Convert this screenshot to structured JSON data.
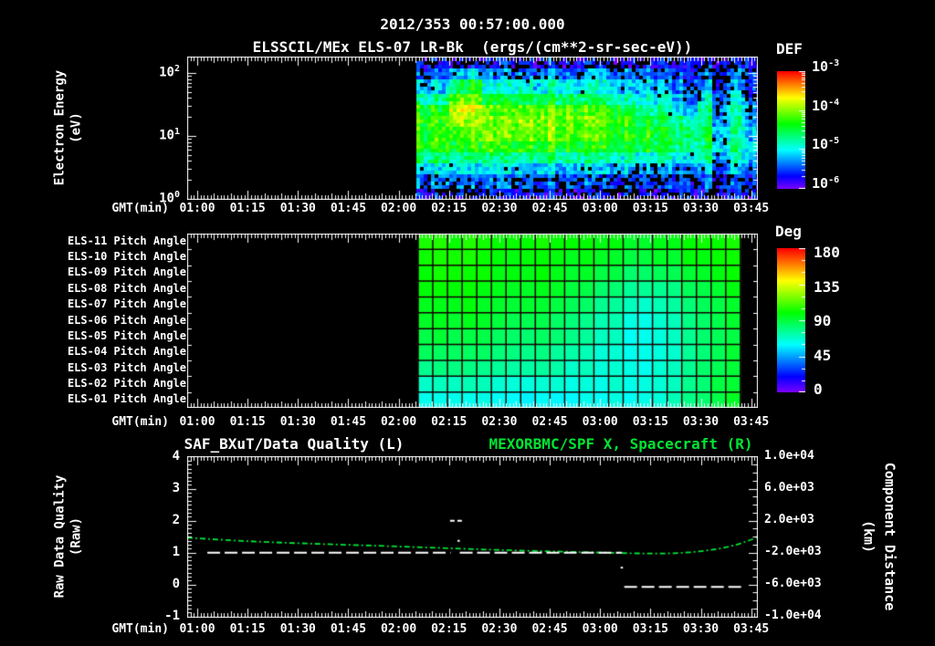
{
  "titles": {
    "line1": "2012/353 00:57:00.000",
    "line2": "ELSSCIL/MEx ELS-07 LR-Bk  (ergs/(cm**2-sr-sec-eV))"
  },
  "colors": {
    "background": "#000000",
    "foreground": "#ffffff",
    "series_green": "#00e533",
    "grid_line": "#140000"
  },
  "time_axis": {
    "label": "GMT(min)",
    "start_min": 57,
    "end_min": 227,
    "tick_start_min": 60,
    "tick_step_min": 15,
    "tick_labels": [
      "01:00",
      "01:15",
      "01:30",
      "01:45",
      "02:00",
      "02:15",
      "02:30",
      "02:45",
      "03:00",
      "03:15",
      "03:30",
      "03:45"
    ]
  },
  "panels": {
    "energy": {
      "xlabel": "GMT(min)",
      "ylabel_line1": "Electron Energy",
      "ylabel_line2": "(eV)",
      "colorbar_label": "DEF"
    },
    "pitch": {
      "xlabel": "GMT(min)",
      "colorbar_label": "Deg"
    },
    "quality": {
      "xlabel": "GMT(min)",
      "title_left": "SAF_BXuT/Data Quality (L)",
      "title_right": "MEXORBMC/SPF X, Spacecraft (R)",
      "ylabel_left_line1": "Raw Data Quality",
      "ylabel_left_line2": "(Raw)",
      "ylabel_right_line1": "Component Distance",
      "ylabel_right_line2": "(km)"
    }
  },
  "chart_data": [
    {
      "id": "electron-energy-spectrogram",
      "type": "heatmap",
      "units": "ergs/(cm**2-sr-sec-eV)",
      "y_axis": {
        "scale": "log",
        "tick_exps": [
          2,
          1,
          0
        ],
        "top_exp": 2.25,
        "bottom_exp": 0
      },
      "z_axis": {
        "label": "DEF",
        "scale": "log",
        "tick_exps": [
          -3,
          -4,
          -5,
          -6
        ],
        "min_exp": -6,
        "max_exp": -3
      },
      "data_start_min": 125.3,
      "data_end_min": 227,
      "log10_flux_grid": [
        [
          -5.7,
          -5.6,
          -5.6,
          -5.7,
          -5.7,
          -5.6,
          -5.7,
          -5.7,
          -5.6,
          -5.7,
          -5.7,
          -5.6,
          -5.7,
          -5.7,
          -5.6,
          -5.6,
          -5.7,
          -5.6,
          -5.6,
          -5.7,
          -5.6,
          -5.7
        ],
        [
          -5.5,
          -5.4,
          -5.1,
          -5.1,
          -5.4,
          -5.3,
          -5.4,
          -5.4,
          -5.3,
          -5.4,
          -5.4,
          -5.3,
          -5.4,
          -5.4,
          -5.4,
          -5.4,
          -5.5,
          -5.5,
          -5.4,
          -5.6,
          -5.4,
          -5.6
        ],
        [
          -5.2,
          -5.1,
          -4.5,
          -4.4,
          -5.0,
          -4.9,
          -4.9,
          -5.0,
          -4.9,
          -4.9,
          -5.0,
          -5.0,
          -5.0,
          -5.1,
          -5.1,
          -5.2,
          -5.3,
          -5.4,
          -5.2,
          -5.5,
          -5.3,
          -5.6
        ],
        [
          -4.8,
          -4.7,
          -4.0,
          -4.0,
          -4.6,
          -4.5,
          -4.5,
          -4.5,
          -4.5,
          -4.5,
          -4.6,
          -4.6,
          -4.7,
          -4.8,
          -4.9,
          -5.0,
          -5.1,
          -5.3,
          -4.9,
          -5.4,
          -5.1,
          -5.5
        ],
        [
          -4.4,
          -4.35,
          -3.7,
          -3.75,
          -4.2,
          -4.15,
          -4.1,
          -4.15,
          -4.1,
          -4.15,
          -4.2,
          -4.25,
          -4.3,
          -4.45,
          -4.6,
          -4.75,
          -4.9,
          -5.2,
          -4.7,
          -5.3,
          -4.9,
          -5.4
        ],
        [
          -4.3,
          -4.25,
          -3.8,
          -3.9,
          -4.05,
          -4.0,
          -4.0,
          -4.0,
          -4.0,
          -4.05,
          -4.1,
          -4.15,
          -4.2,
          -4.3,
          -4.4,
          -4.55,
          -4.7,
          -4.8,
          -4.6,
          -5.2,
          -4.8,
          -5.3
        ],
        [
          -4.3,
          -4.2,
          -4.1,
          -4.1,
          -4.05,
          -4.05,
          -4.05,
          -4.05,
          -4.05,
          -4.1,
          -4.1,
          -4.15,
          -4.2,
          -4.25,
          -4.3,
          -4.4,
          -4.5,
          -4.6,
          -4.5,
          -5.1,
          -4.8,
          -5.2
        ],
        [
          -4.4,
          -4.3,
          -4.3,
          -4.3,
          -4.3,
          -4.3,
          -4.3,
          -4.3,
          -4.3,
          -4.3,
          -4.35,
          -4.35,
          -4.4,
          -4.4,
          -4.45,
          -4.5,
          -4.55,
          -4.7,
          -4.6,
          -5.0,
          -4.8,
          -5.1
        ],
        [
          -4.7,
          -4.65,
          -4.65,
          -4.65,
          -4.7,
          -4.7,
          -4.7,
          -4.7,
          -4.7,
          -4.7,
          -4.7,
          -4.75,
          -4.75,
          -4.8,
          -4.8,
          -4.85,
          -4.9,
          -5.0,
          -4.8,
          -5.2,
          -4.9,
          -5.2
        ],
        [
          -5.1,
          -5.0,
          -5.0,
          -5.05,
          -5.05,
          -5.1,
          -5.1,
          -5.1,
          -5.1,
          -5.1,
          -5.1,
          -5.15,
          -5.15,
          -5.15,
          -5.2,
          -5.2,
          -5.2,
          -5.3,
          -5.1,
          -5.4,
          -5.2,
          -5.4
        ],
        [
          -5.4,
          -5.35,
          -5.35,
          -5.4,
          -5.4,
          -5.4,
          -5.4,
          -5.45,
          -5.45,
          -5.45,
          -5.45,
          -5.5,
          -5.5,
          -5.5,
          -5.5,
          -5.5,
          -5.5,
          -5.5,
          -5.4,
          -5.6,
          -5.5,
          -5.6
        ],
        [
          -5.7,
          -5.65,
          -5.65,
          -5.7,
          -5.7,
          -5.7,
          -5.7,
          -5.7,
          -5.7,
          -5.7,
          -5.7,
          -5.7,
          -5.7,
          -5.7,
          -5.7,
          -5.7,
          -5.7,
          -5.7,
          -5.6,
          -5.7,
          -5.7,
          -5.7
        ]
      ]
    },
    {
      "id": "pitch-angle-grid",
      "type": "heatmap",
      "channels": [
        "ELS-11 Pitch Angle",
        "ELS-10 Pitch Angle",
        "ELS-09 Pitch Angle",
        "ELS-08 Pitch Angle",
        "ELS-07 Pitch Angle",
        "ELS-06 Pitch Angle",
        "ELS-05 Pitch Angle",
        "ELS-04 Pitch Angle",
        "ELS-03 Pitch Angle",
        "ELS-02 Pitch Angle",
        "ELS-01 Pitch Angle"
      ],
      "z_axis": {
        "label": "Deg",
        "min": 0,
        "max": 180,
        "ticks": [
          180,
          135,
          90,
          45,
          0
        ]
      },
      "data_start_min": 125.8,
      "data_end_min": 221.8,
      "pitch_deg_grid": [
        [
          103,
          103,
          102,
          102,
          102,
          102,
          101,
          101,
          101,
          100,
          100,
          99,
          98,
          97,
          96,
          96,
          96,
          97,
          98,
          100,
          101,
          102
        ],
        [
          102,
          102,
          102,
          101,
          101,
          101,
          100,
          100,
          100,
          99,
          98,
          97,
          95,
          93,
          92,
          92,
          93,
          94,
          96,
          98,
          100,
          101
        ],
        [
          101,
          101,
          100,
          100,
          100,
          99,
          99,
          98,
          98,
          97,
          95,
          93,
          90,
          87,
          85,
          85,
          86,
          88,
          91,
          94,
          97,
          99
        ],
        [
          99,
          99,
          99,
          98,
          98,
          97,
          97,
          96,
          95,
          94,
          91,
          88,
          84,
          80,
          77,
          77,
          78,
          81,
          85,
          89,
          93,
          96
        ],
        [
          97,
          97,
          96,
          96,
          95,
          95,
          94,
          93,
          92,
          90,
          87,
          83,
          78,
          74,
          71,
          70,
          72,
          75,
          80,
          85,
          90,
          93
        ],
        [
          94,
          94,
          93,
          93,
          92,
          91,
          90,
          89,
          88,
          86,
          83,
          79,
          74,
          70,
          67,
          66,
          68,
          71,
          77,
          83,
          88,
          91
        ],
        [
          90,
          90,
          89,
          89,
          88,
          87,
          86,
          85,
          84,
          82,
          79,
          75,
          71,
          67,
          64,
          64,
          66,
          70,
          75,
          81,
          87,
          90
        ],
        [
          85,
          85,
          84,
          84,
          83,
          82,
          81,
          80,
          79,
          77,
          75,
          72,
          68,
          66,
          64,
          64,
          66,
          69,
          75,
          81,
          86,
          90
        ],
        [
          78,
          78,
          78,
          77,
          77,
          76,
          75,
          75,
          74,
          73,
          71,
          69,
          67,
          66,
          65,
          65,
          67,
          70,
          75,
          81,
          87,
          91
        ],
        [
          70,
          70,
          70,
          69,
          69,
          68,
          68,
          67,
          67,
          66,
          66,
          65,
          65,
          65,
          65,
          66,
          68,
          71,
          76,
          82,
          88,
          92
        ],
        [
          63,
          63,
          62,
          62,
          62,
          61,
          61,
          61,
          61,
          61,
          61,
          61,
          62,
          63,
          64,
          65,
          67,
          71,
          77,
          83,
          89,
          93
        ]
      ]
    },
    {
      "id": "quality-and-distance",
      "type": "line",
      "y_left": {
        "min": -1,
        "max": 4,
        "ticks": [
          4,
          3,
          2,
          1,
          0,
          -1
        ]
      },
      "y_right": {
        "min": -10000,
        "max": 10000,
        "tick_labels": [
          "1.0e+04",
          "6.0e+03",
          "2.0e+03",
          "-2.0e+03",
          "-6.0e+03",
          "-1.0e+04"
        ],
        "tick_values": [
          10000,
          6000,
          2000,
          -2000,
          -6000,
          -10000
        ]
      },
      "left_series": {
        "name": "SAF_BXuT/Data Quality (L)",
        "style": "dashed",
        "color": "#ffffff",
        "segments": [
          {
            "t_min": [
              63,
              135.5
            ],
            "value": 1.0
          },
          {
            "t_min": [
              138.2,
              186.5
            ],
            "value": 1.0
          },
          {
            "t_min": [
              187.2,
              222
            ],
            "value": -0.07
          }
        ],
        "marks": [
          {
            "t_min": 135.3,
            "len_min": 3.8,
            "value": 2.0
          },
          {
            "t_min": 137.8,
            "len_min": 0.4,
            "value": 1.37
          },
          {
            "t_min": 186.4,
            "len_min": 0.4,
            "value": 0.53
          }
        ]
      },
      "right_series": {
        "name": "MEXORBMC/SPF X, Spacecraft (R)",
        "style": "dotted",
        "color": "#00e533",
        "points_t_km": [
          [
            57,
            -120
          ],
          [
            63,
            -280
          ],
          [
            70,
            -450
          ],
          [
            78,
            -620
          ],
          [
            86,
            -760
          ],
          [
            95,
            -890
          ],
          [
            104,
            -1010
          ],
          [
            113,
            -1130
          ],
          [
            122,
            -1260
          ],
          [
            131,
            -1390
          ],
          [
            140,
            -1520
          ],
          [
            149,
            -1650
          ],
          [
            158,
            -1760
          ],
          [
            167,
            -1860
          ],
          [
            176,
            -1950
          ],
          [
            184,
            -2030
          ],
          [
            191,
            -2090
          ],
          [
            197,
            -2110
          ],
          [
            202,
            -2080
          ],
          [
            207,
            -1950
          ],
          [
            211,
            -1780
          ],
          [
            215,
            -1540
          ],
          [
            218,
            -1280
          ],
          [
            221,
            -960
          ],
          [
            223,
            -680
          ],
          [
            225,
            -380
          ],
          [
            226.5,
            -80
          ],
          [
            227.5,
            150
          ]
        ]
      }
    }
  ]
}
